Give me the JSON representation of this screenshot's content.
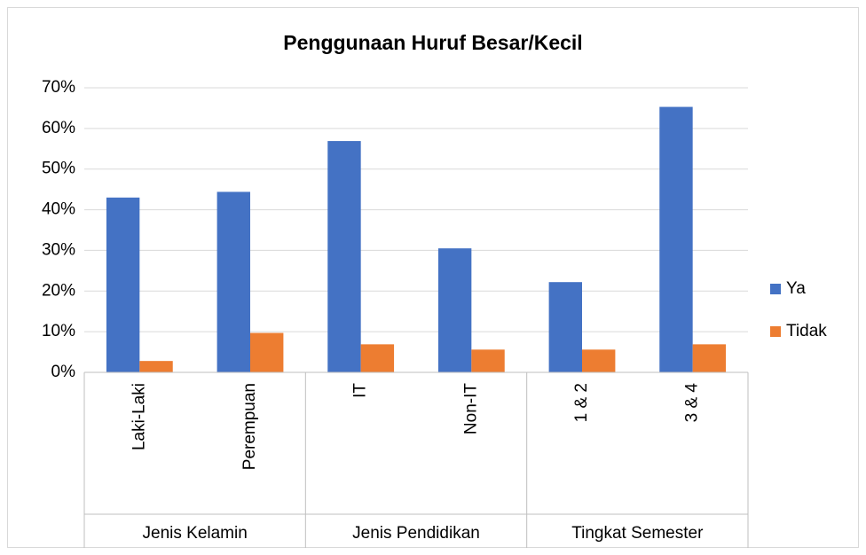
{
  "chart_data": {
    "type": "bar",
    "title": "Penggunaan Huruf Besar/Kecil",
    "categories": [
      "Laki-Laki",
      "Perempuan",
      "IT",
      "Non-IT",
      "1 & 2",
      "3 & 4"
    ],
    "groups": [
      "Jenis Kelamin",
      "Jenis Pendidikan",
      "Tingkat Semester"
    ],
    "series": [
      {
        "name": "Ya",
        "color": "#4472c4",
        "values": [
          43,
          44.4,
          56.9,
          30.5,
          22.2,
          65.3
        ]
      },
      {
        "name": "Tidak",
        "color": "#ed7d31",
        "values": [
          2.8,
          9.7,
          6.9,
          5.6,
          5.6,
          6.9
        ]
      }
    ],
    "ylim": [
      0,
      70
    ],
    "yticks": [
      {
        "value": 0,
        "label": "0%"
      },
      {
        "value": 10,
        "label": "10%"
      },
      {
        "value": 20,
        "label": "20%"
      },
      {
        "value": 30,
        "label": "30%"
      },
      {
        "value": 40,
        "label": "40%"
      },
      {
        "value": 50,
        "label": "50%"
      },
      {
        "value": 60,
        "label": "60%"
      },
      {
        "value": 70,
        "label": "70%"
      }
    ],
    "grid": true,
    "legend": "right"
  }
}
